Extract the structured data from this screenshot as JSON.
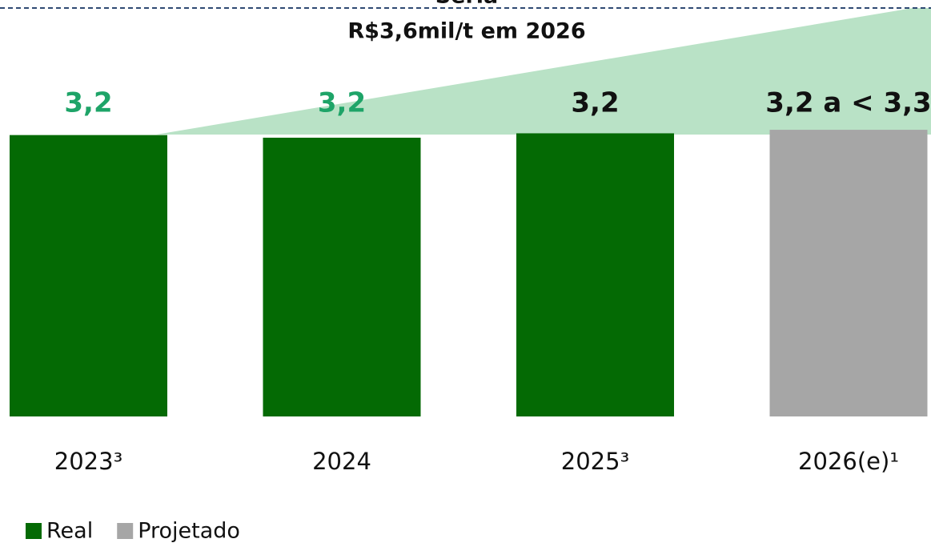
{
  "chart_data": {
    "type": "bar",
    "annotations": [
      "Seria",
      "R$3,6mil/t em 2026"
    ],
    "categories": [
      "2023³",
      "2024",
      "2025³",
      "2026(e)¹"
    ],
    "values": [
      3.2,
      3.17,
      3.22,
      3.26
    ],
    "value_labels": [
      "3,2",
      "3,2",
      "3,2",
      "3,2 a < 3,3"
    ],
    "colors": [
      "#046a04",
      "#046a04",
      "#046a04",
      "#a6a6a6"
    ],
    "label_colors": [
      "#1ea468",
      "#1ea468",
      "#111111",
      "#111111"
    ],
    "series": [
      {
        "name": "Real",
        "color": "#046a04"
      },
      {
        "name": "Projetado",
        "color": "#a6a6a6"
      }
    ]
  }
}
